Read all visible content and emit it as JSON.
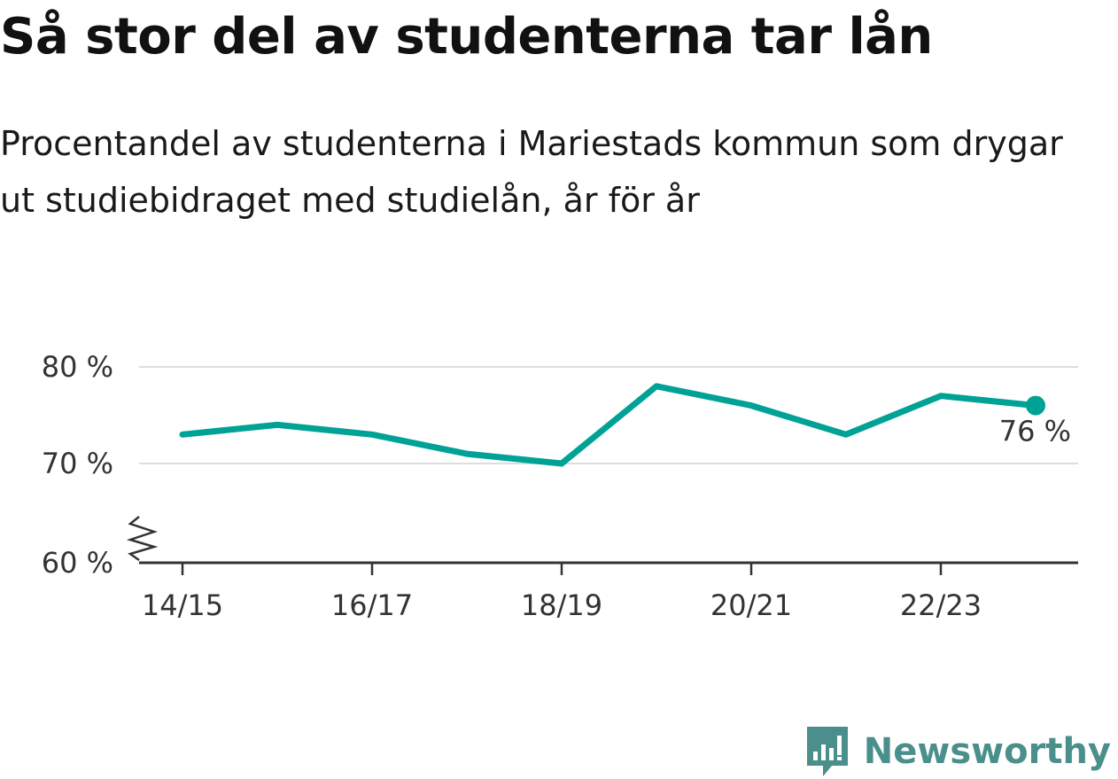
{
  "colors": {
    "line": "#00a296",
    "grid": "#dddddd",
    "axis": "#333333",
    "brand": "#4a8f8c"
  },
  "logo": {
    "text": "Newsworthy",
    "icon": "bar-chart-bubble-icon"
  },
  "chart_data": {
    "type": "line",
    "title": "Så stor del av studenterna tar lån",
    "subtitle": "Procentandel av studenterna i Mariestads kommun som drygar ut studiebidraget med studielån, år för år",
    "x": [
      "14/15",
      "15/16",
      "16/17",
      "17/18",
      "18/19",
      "19/20",
      "20/21",
      "21/22",
      "22/23",
      "23/24"
    ],
    "x_tick_labels": [
      "14/15",
      "16/17",
      "18/19",
      "20/21",
      "22/23"
    ],
    "series": [
      {
        "values": [
          73,
          74,
          73,
          71,
          70,
          78,
          76,
          73,
          77,
          76
        ]
      }
    ],
    "y_ticks": [
      60,
      70,
      80
    ],
    "y_tick_labels": [
      "60 %",
      "70 %",
      "80 %"
    ],
    "ylim": [
      60,
      80
    ],
    "axis_break": true,
    "grid": true,
    "last_value_label": "76 %"
  }
}
